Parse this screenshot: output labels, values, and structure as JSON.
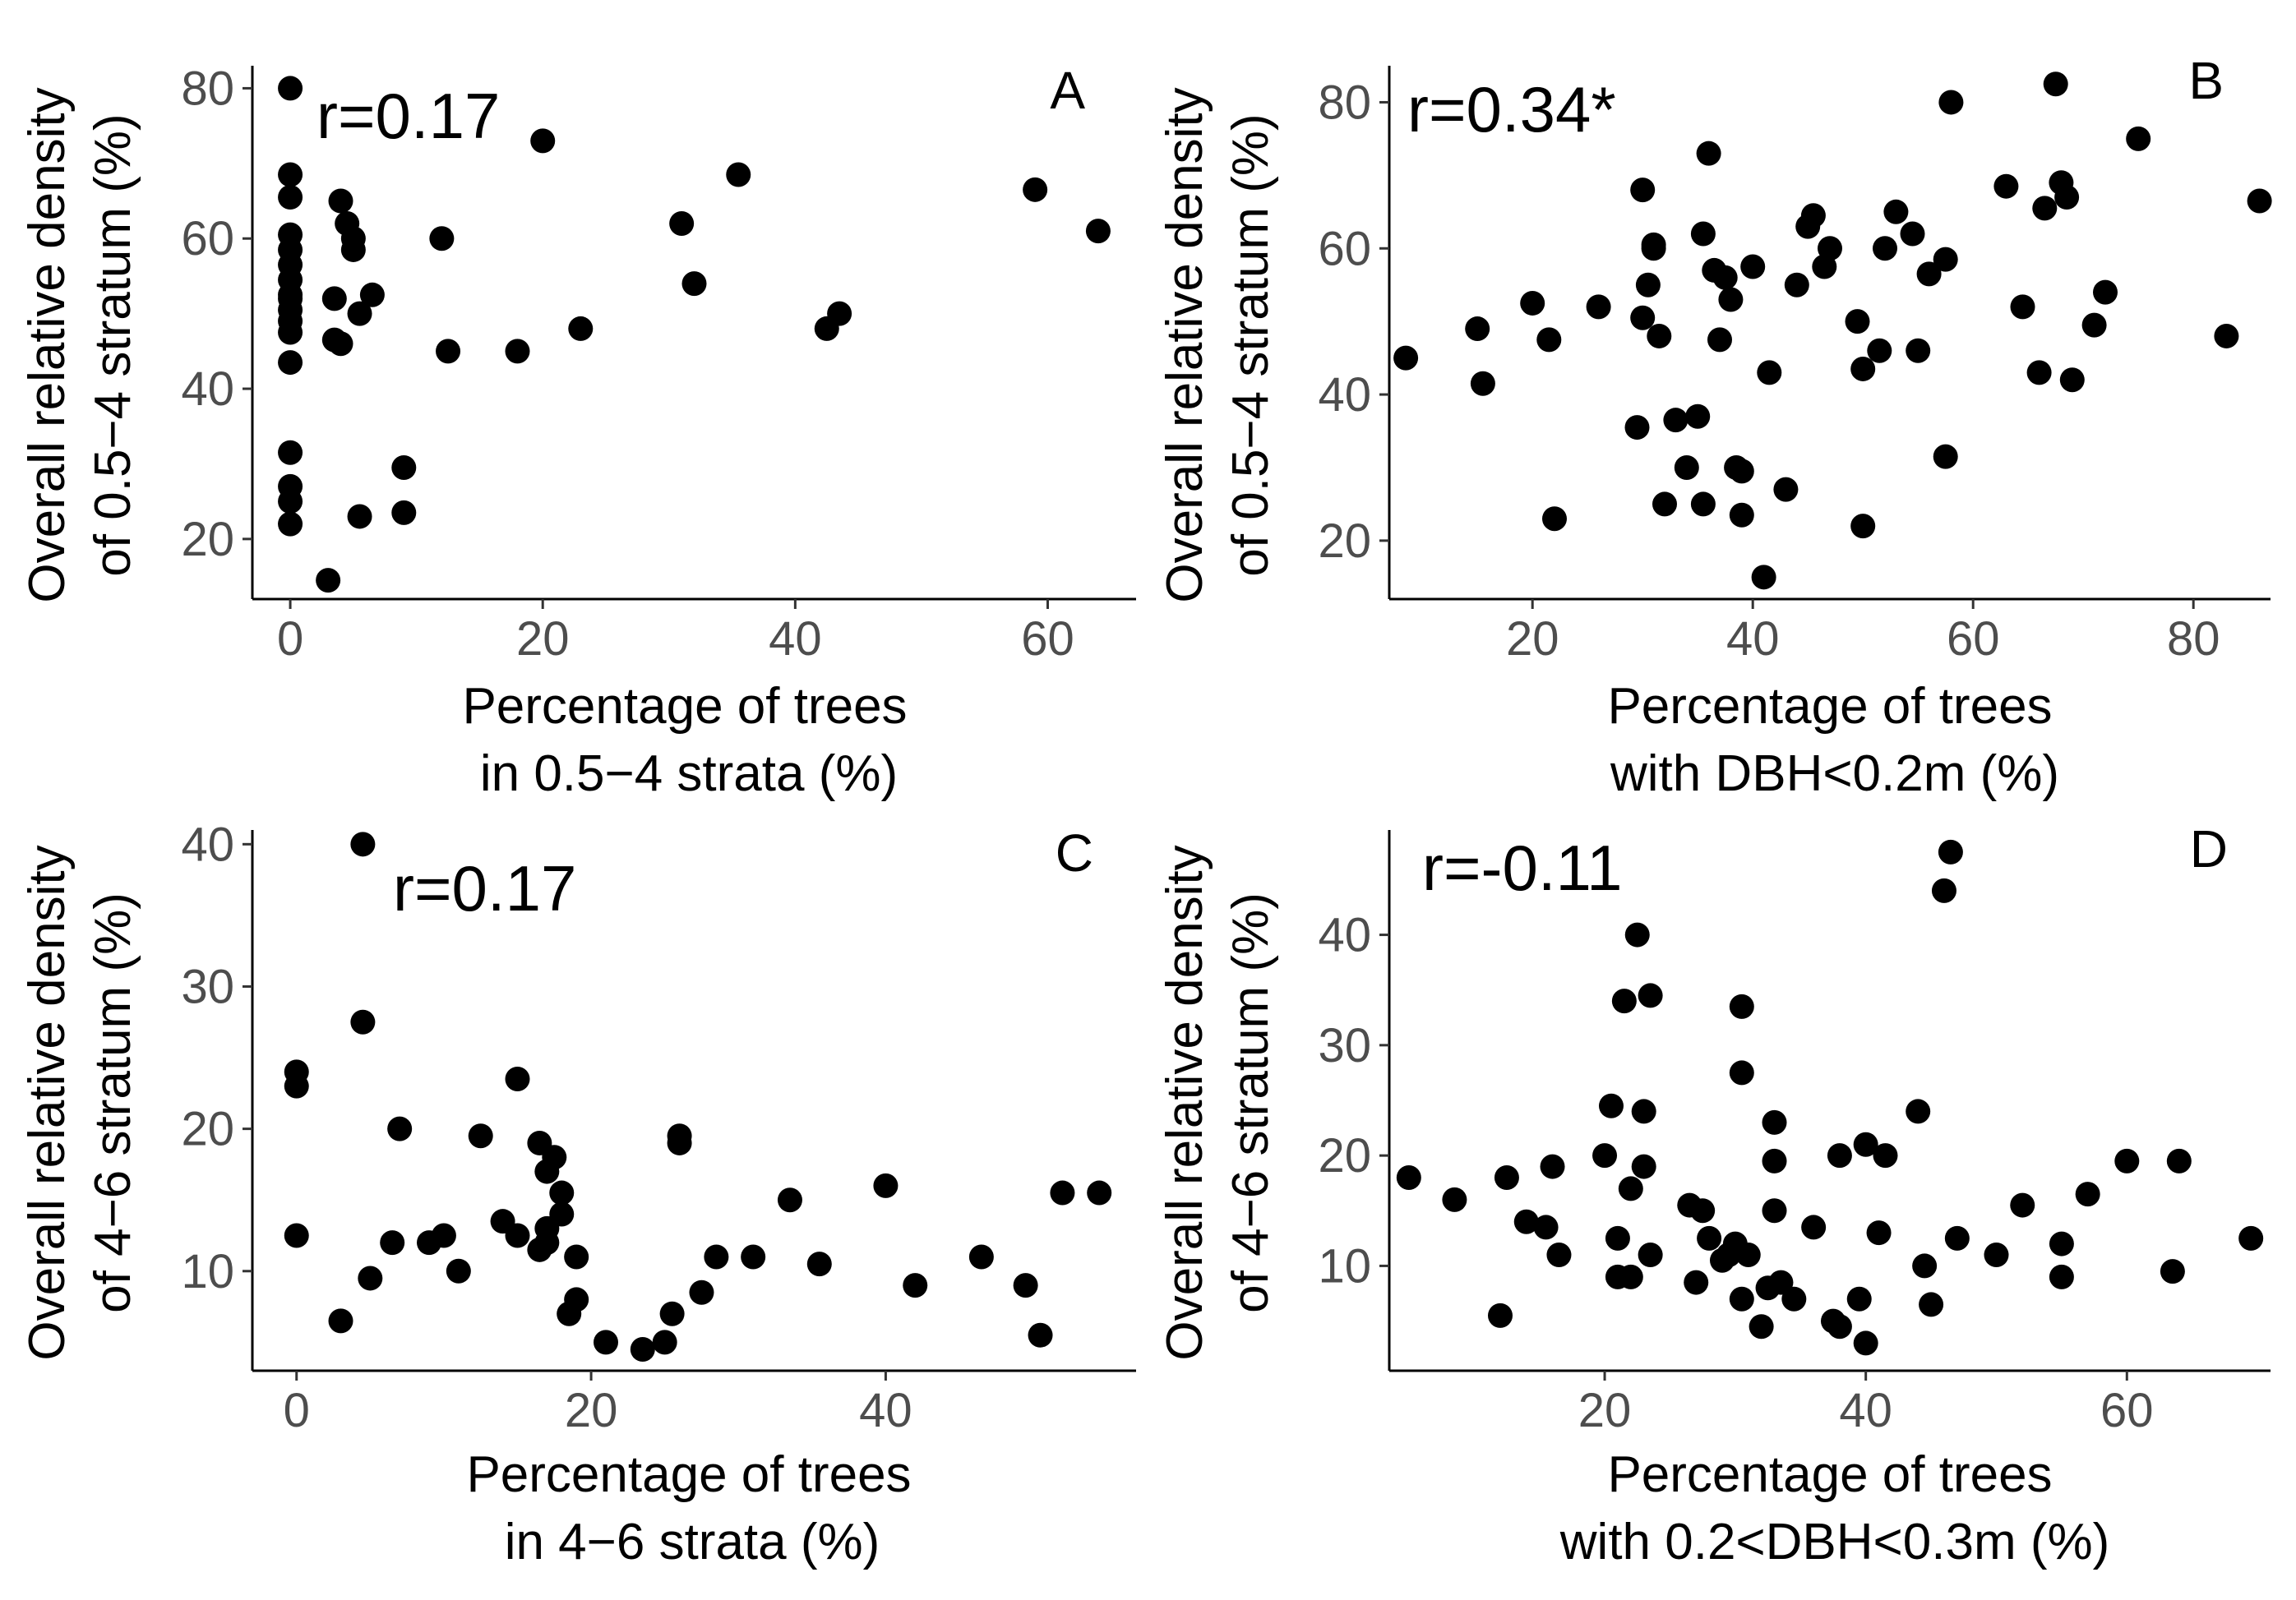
{
  "chart_data": [
    {
      "panel": "A",
      "type": "scatter",
      "annotation": "r=0.17",
      "ylabel": [
        "Overall relative density",
        "of 0.5−4 stratum (%)"
      ],
      "xlabel": [
        "Percentage of trees",
        "in 0.5−4 strata (%)"
      ],
      "xlim": [
        -3,
        67
      ],
      "ylim": [
        12,
        83
      ],
      "xticks": [
        0,
        20,
        40,
        60
      ],
      "yticks": [
        20,
        40,
        60,
        80
      ],
      "x": [
        0,
        0,
        0,
        0,
        0,
        0,
        0,
        0,
        0,
        0,
        0,
        0,
        0,
        0,
        0,
        0,
        0,
        3.5,
        4,
        4.5,
        5,
        5,
        5.5,
        4,
        6.5,
        3.5,
        5.5,
        9,
        9,
        3,
        12,
        12.5,
        18,
        20,
        23,
        31,
        32,
        35.5,
        42.5,
        43.5,
        59,
        64
      ],
      "y": [
        80,
        68.5,
        65.5,
        60.5,
        58.5,
        56.5,
        54.5,
        52.5,
        50.5,
        49,
        47.5,
        43.5,
        31.5,
        27,
        25,
        22,
        52,
        52,
        65,
        62,
        58.5,
        60,
        50,
        46,
        52.5,
        46.5,
        23,
        29.5,
        23.5,
        14.5,
        60,
        45,
        45,
        73,
        48,
        62,
        54,
        68.5,
        48,
        50,
        66.5,
        61
      ]
    },
    {
      "panel": "B",
      "type": "scatter",
      "annotation": "r=0.34*",
      "ylabel": [
        "Overall relative density",
        "of 0.5−4 stratum (%)"
      ],
      "xlabel": [
        "Percentage of trees",
        "with DBH<0.2m (%)"
      ],
      "xlim": [
        7,
        87
      ],
      "ylim": [
        12,
        85
      ],
      "xticks": [
        20,
        40,
        60,
        80
      ],
      "yticks": [
        20,
        40,
        60,
        80
      ],
      "x": [
        8.5,
        15.5,
        15,
        20,
        21.5,
        22,
        26,
        29.5,
        30,
        30,
        30.5,
        31,
        31,
        31.5,
        32,
        33,
        34,
        35,
        35.5,
        35.5,
        36,
        36.5,
        37,
        37.5,
        38,
        38.5,
        39,
        39,
        40,
        41,
        41.5,
        43,
        44,
        45,
        45.5,
        46.5,
        47,
        49.5,
        50,
        50,
        51.5,
        52,
        53,
        54.5,
        55,
        56,
        57.5,
        57.5,
        58,
        63,
        64.5,
        66,
        66.5,
        67.5,
        68,
        68.5,
        69,
        71,
        72,
        75,
        83,
        86
      ],
      "y": [
        45,
        41.5,
        49,
        52.5,
        47.5,
        23,
        52,
        35.5,
        68,
        50.5,
        55,
        60.5,
        60,
        48,
        25,
        36.5,
        30,
        37,
        25,
        62,
        73,
        57,
        47.5,
        56,
        53,
        30,
        29.5,
        23.5,
        57.5,
        15,
        43,
        27,
        55,
        63,
        64.5,
        57.5,
        60,
        50,
        43.5,
        22,
        46,
        60,
        65,
        62,
        46,
        56.5,
        31.5,
        58.5,
        80,
        68.5,
        52,
        43,
        65.5,
        82.5,
        69,
        67,
        42,
        49.5,
        54,
        75,
        48,
        66.5
      ]
    },
    {
      "panel": "C",
      "type": "scatter",
      "annotation": "r=0.17",
      "ylabel": [
        "Overall relative density",
        "of 4−6 stratum (%)"
      ],
      "xlabel": [
        "Percentage of trees",
        "in 4−6 strata (%)"
      ],
      "xlim": [
        -3,
        57
      ],
      "ylim": [
        3,
        41
      ],
      "xticks": [
        0,
        20,
        40
      ],
      "yticks": [
        10,
        20,
        30,
        40
      ],
      "x": [
        0,
        0,
        0,
        3,
        4.5,
        4.5,
        5,
        6.5,
        7,
        9,
        10,
        11,
        12.5,
        14,
        15,
        15,
        16.5,
        16.5,
        17,
        17,
        17,
        17.5,
        18,
        18,
        18.5,
        19,
        19,
        21,
        23.5,
        25,
        25.5,
        26,
        26,
        27.5,
        28.5,
        31,
        33.5,
        35.5,
        40,
        42,
        46.5,
        49.5,
        50.5,
        52,
        54.5
      ],
      "y": [
        24,
        23,
        12.5,
        6.5,
        40,
        27.5,
        9.5,
        12,
        20,
        12,
        12.5,
        10,
        19.5,
        13.5,
        23.5,
        12.5,
        19,
        11.5,
        17,
        13,
        12,
        18,
        14,
        15.5,
        7,
        11,
        8,
        5,
        4.5,
        5,
        7,
        19,
        19.5,
        8.5,
        11,
        11,
        15,
        10.5,
        16,
        9,
        11,
        9,
        5.5,
        15.5,
        15.5
      ]
    },
    {
      "panel": "D",
      "type": "scatter",
      "annotation": "r=-0.11",
      "ylabel": [
        "Overall relative density",
        "of 4−6 stratum (%)"
      ],
      "xlabel": [
        "Percentage of trees",
        "with 0.2<DBH<0.3m (%)"
      ],
      "xlim": [
        3.5,
        71
      ],
      "ylim": [
        0.5,
        49.5
      ],
      "xticks": [
        20,
        40,
        60
      ],
      "yticks": [
        10,
        20,
        30,
        40
      ],
      "x": [
        5,
        8.5,
        12,
        12.5,
        14,
        15.5,
        16,
        16.5,
        20,
        20.5,
        21,
        21,
        21.5,
        22,
        22,
        22.5,
        23,
        23,
        23.5,
        23.5,
        26.5,
        27,
        27.5,
        28,
        29,
        29.5,
        30,
        30.5,
        30.5,
        30.5,
        31,
        32,
        32.5,
        33,
        33,
        33,
        33.5,
        34.5,
        36,
        37.5,
        38,
        38,
        39.5,
        40,
        40,
        41,
        41.5,
        44,
        44.5,
        45,
        46,
        46.5,
        47,
        50,
        52,
        55,
        55,
        57,
        60,
        63.5,
        64,
        69.5
      ],
      "y": [
        18,
        16,
        5.5,
        18,
        14,
        13.5,
        19,
        11,
        20,
        24.5,
        9,
        12.5,
        34,
        9,
        17,
        40,
        24,
        19,
        34.5,
        11,
        15.5,
        8.5,
        15,
        12.5,
        10.5,
        11,
        12,
        33.5,
        27.5,
        7,
        11,
        4.5,
        8,
        15,
        19.5,
        23,
        8.5,
        7,
        13.5,
        5,
        20,
        4.5,
        7,
        21,
        3,
        13,
        20,
        24,
        10,
        6.5,
        44,
        47.5,
        12.5,
        11,
        15.5,
        9,
        12,
        16.5,
        19.5,
        9.5,
        19.5,
        12.5
      ]
    }
  ]
}
